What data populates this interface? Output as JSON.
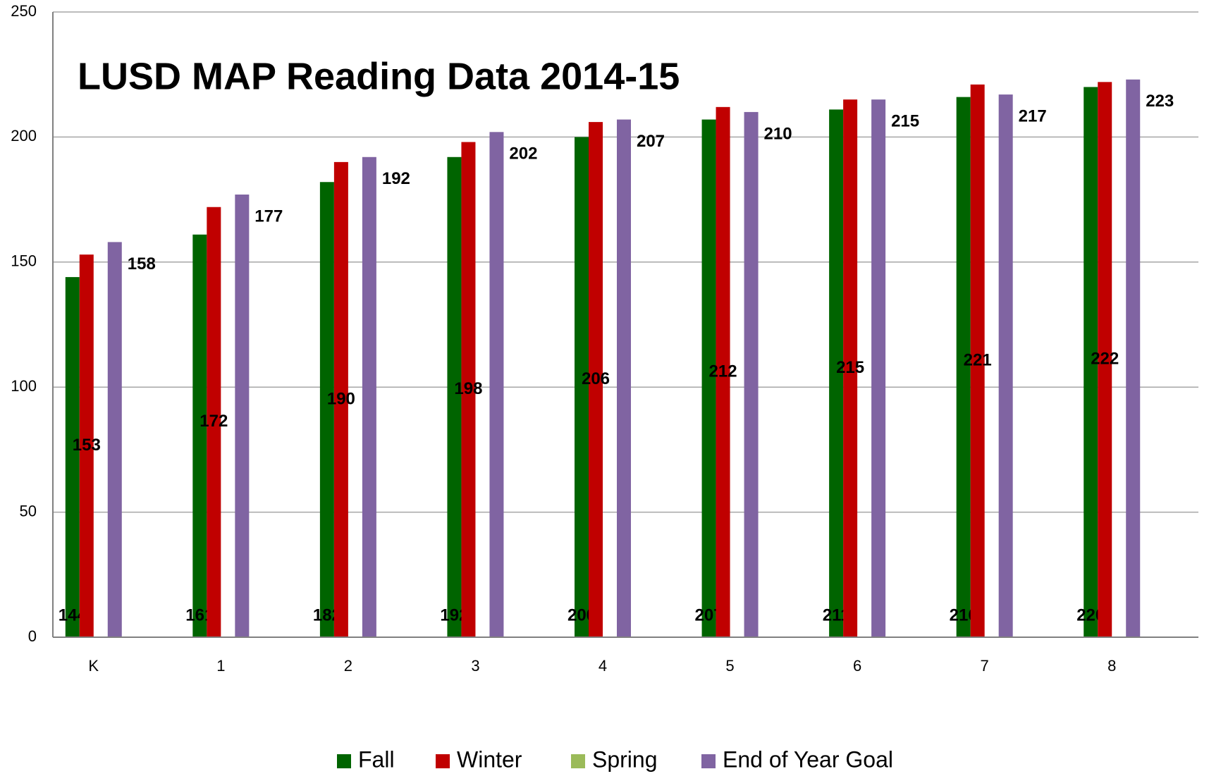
{
  "chart_data": {
    "type": "bar",
    "title": "LUSD MAP Reading Data 2014-15",
    "categories": [
      "K",
      "1",
      "2",
      "3",
      "4",
      "5",
      "6",
      "7",
      "8"
    ],
    "series": [
      {
        "name": "Fall",
        "color": "#006400",
        "values": [
          144,
          161,
          182,
          192,
          200,
          207,
          211,
          216,
          220
        ]
      },
      {
        "name": "Winter",
        "color": "#c00000",
        "values": [
          153,
          172,
          190,
          198,
          206,
          212,
          215,
          221,
          222
        ]
      },
      {
        "name": "Spring",
        "color": "#9bbb59",
        "values": [
          null,
          null,
          null,
          null,
          null,
          null,
          null,
          null,
          null
        ]
      },
      {
        "name": "End of Year Goal",
        "color": "#8064a2",
        "values": [
          158,
          177,
          192,
          202,
          207,
          210,
          215,
          217,
          223
        ]
      }
    ],
    "ylim": [
      0,
      250
    ],
    "yticks": [
      0,
      50,
      100,
      150,
      200,
      250
    ],
    "grid": true,
    "legend": "bottom"
  }
}
